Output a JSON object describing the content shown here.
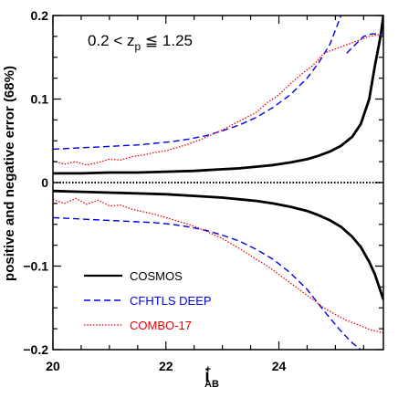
{
  "chart_data": {
    "type": "line",
    "title": "",
    "xlabel": "i",
    "xlabel_super": "+",
    "xlabel_sub": "AB",
    "ylabel": "positive and negative error (68%)",
    "xlim": [
      20,
      25.85
    ],
    "ylim": [
      -0.2,
      0.2
    ],
    "xticks": [
      20,
      22,
      24
    ],
    "yticks": [
      -0.2,
      -0.1,
      0,
      0.1,
      0.2
    ],
    "ytick_labels": [
      "−0.2",
      "−0.1",
      "0",
      "0.1",
      "0.2"
    ],
    "annotation": {
      "text_a": "0.2 < z",
      "sub": "p",
      "text_b": " ≦ 1.25",
      "position": "top-left"
    },
    "zero_line": true,
    "legend_position": "bottom-left",
    "series": [
      {
        "name": "COSMOS",
        "color": "#000000",
        "style": "solid",
        "segments": [
          {
            "x": [
              20,
              20.5,
              21,
              21.5,
              22,
              22.5,
              23,
              23.3,
              23.6,
              23.9,
              24.2,
              24.5,
              24.7,
              24.9,
              25.1,
              25.3,
              25.45,
              25.6,
              25.7,
              25.8,
              25.85
            ],
            "y": [
              0.011,
              0.011,
              0.012,
              0.012,
              0.013,
              0.014,
              0.016,
              0.017,
              0.019,
              0.021,
              0.024,
              0.028,
              0.032,
              0.037,
              0.044,
              0.055,
              0.07,
              0.1,
              0.14,
              0.175,
              0.2
            ]
          },
          {
            "x": [
              20,
              20.5,
              21,
              21.5,
              22,
              22.5,
              23,
              23.3,
              23.6,
              23.9,
              24.2,
              24.5,
              24.7,
              24.9,
              25.1,
              25.3,
              25.45,
              25.6,
              25.7,
              25.8,
              25.85
            ],
            "y": [
              -0.01,
              -0.011,
              -0.012,
              -0.013,
              -0.014,
              -0.016,
              -0.018,
              -0.02,
              -0.022,
              -0.025,
              -0.029,
              -0.034,
              -0.039,
              -0.045,
              -0.053,
              -0.065,
              -0.077,
              -0.095,
              -0.11,
              -0.13,
              -0.14
            ]
          }
        ]
      },
      {
        "name": "CFHTLS DEEP",
        "color": "#0000ee",
        "style": "dashed",
        "segments": [
          {
            "x": [
              20,
              20.3,
              20.6,
              20.9,
              21.2,
              21.5,
              21.8,
              22.1,
              22.4,
              22.7,
              23,
              23.3,
              23.6,
              23.9,
              24.2,
              24.5,
              24.7,
              24.9,
              25.1
            ],
            "y": [
              0.04,
              0.041,
              0.042,
              0.043,
              0.044,
              0.045,
              0.047,
              0.049,
              0.052,
              0.056,
              0.062,
              0.069,
              0.078,
              0.09,
              0.105,
              0.125,
              0.143,
              0.165,
              0.2
            ]
          },
          {
            "x": [
              25.2,
              25.35,
              25.5,
              25.65,
              25.85
            ],
            "y": [
              0.155,
              0.165,
              0.175,
              0.178,
              0.178
            ]
          },
          {
            "x": [
              20,
              20.3,
              20.6,
              20.9,
              21.2,
              21.5,
              21.8,
              22.1,
              22.4,
              22.7,
              23,
              23.3,
              23.6,
              23.9,
              24.2,
              24.5,
              24.7,
              24.9,
              25.1,
              25.3,
              25.45
            ],
            "y": [
              -0.042,
              -0.043,
              -0.044,
              -0.045,
              -0.046,
              -0.047,
              -0.048,
              -0.05,
              -0.053,
              -0.057,
              -0.063,
              -0.07,
              -0.08,
              -0.092,
              -0.108,
              -0.128,
              -0.145,
              -0.162,
              -0.178,
              -0.192,
              -0.2
            ]
          }
        ]
      },
      {
        "name": "COMBO-17",
        "color": "#ee0000",
        "style": "dotted",
        "segments": [
          {
            "x": [
              20,
              20.2,
              20.4,
              20.6,
              20.8,
              21,
              21.2,
              21.4,
              21.6,
              21.8,
              22,
              22.2,
              22.4,
              22.6,
              22.8,
              23,
              23.2,
              23.4,
              23.6,
              23.8,
              24,
              24.2,
              24.4,
              24.6,
              24.8,
              25,
              25.2,
              25.4,
              25.6,
              25.85
            ],
            "y": [
              0.026,
              0.022,
              0.025,
              0.021,
              0.024,
              0.028,
              0.027,
              0.031,
              0.033,
              0.036,
              0.038,
              0.042,
              0.046,
              0.051,
              0.057,
              0.063,
              0.07,
              0.077,
              0.084,
              0.096,
              0.105,
              0.118,
              0.13,
              0.14,
              0.155,
              0.16,
              0.165,
              0.17,
              0.175,
              0.178
            ]
          },
          {
            "x": [
              20,
              20.2,
              20.4,
              20.6,
              20.8,
              21,
              21.2,
              21.4,
              21.6,
              21.8,
              22,
              22.2,
              22.4,
              22.6,
              22.8,
              23,
              23.2,
              23.4,
              23.6,
              23.8,
              24,
              24.2,
              24.4,
              24.6,
              24.8,
              25,
              25.2,
              25.4,
              25.6,
              25.85
            ],
            "y": [
              -0.02,
              -0.025,
              -0.019,
              -0.026,
              -0.021,
              -0.028,
              -0.027,
              -0.032,
              -0.035,
              -0.038,
              -0.042,
              -0.046,
              -0.05,
              -0.055,
              -0.061,
              -0.067,
              -0.075,
              -0.083,
              -0.092,
              -0.1,
              -0.11,
              -0.12,
              -0.13,
              -0.14,
              -0.15,
              -0.158,
              -0.165,
              -0.17,
              -0.176,
              -0.18
            ]
          }
        ]
      }
    ]
  }
}
